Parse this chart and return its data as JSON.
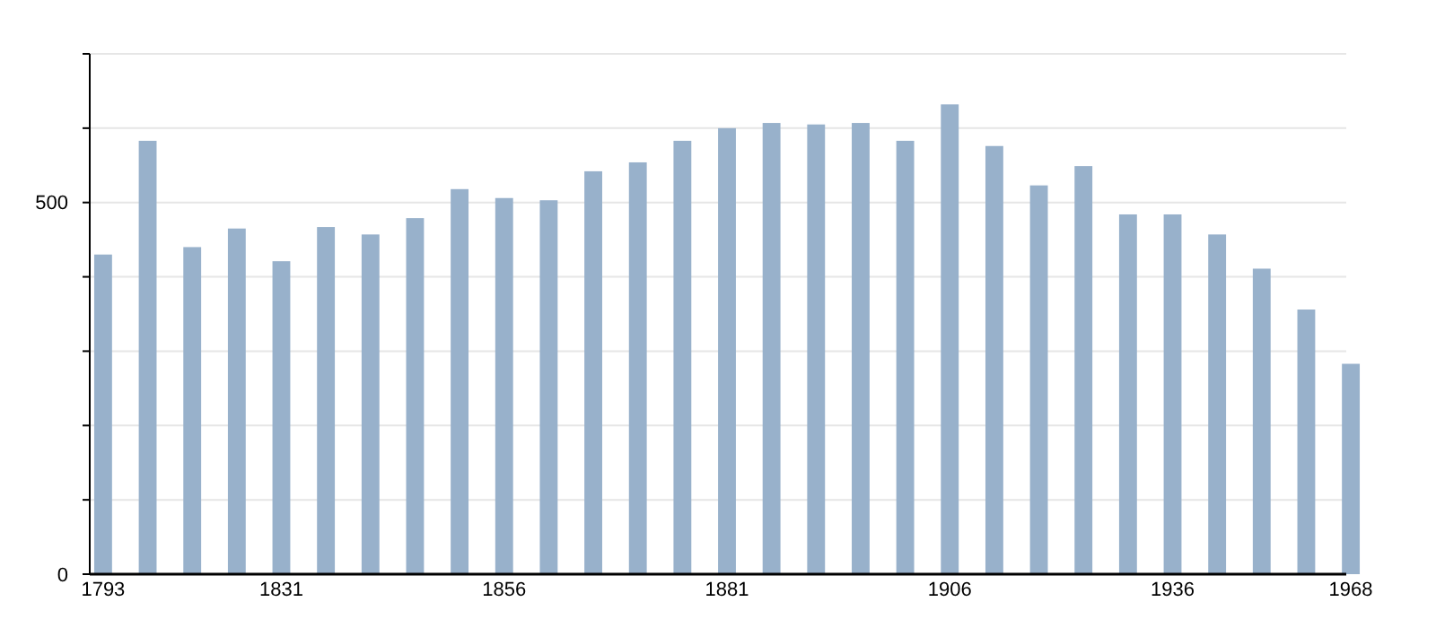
{
  "chart_data": {
    "type": "bar",
    "categories": [
      "1793",
      null,
      null,
      null,
      "1831",
      null,
      null,
      null,
      null,
      "1856",
      null,
      null,
      null,
      null,
      "1881",
      null,
      null,
      null,
      null,
      "1906",
      null,
      null,
      null,
      null,
      "1936",
      null,
      null,
      null,
      "1968"
    ],
    "values": [
      430,
      583,
      440,
      465,
      421,
      467,
      457,
      479,
      518,
      506,
      503,
      542,
      554,
      583,
      600,
      607,
      605,
      607,
      583,
      632,
      576,
      523,
      549,
      484,
      484,
      457,
      411,
      356,
      283
    ],
    "color": "#98b1cb",
    "ylim": [
      0,
      700
    ],
    "yticks": [
      0,
      {
        "value": 100,
        "label": null
      },
      {
        "value": 200,
        "label": null
      },
      {
        "value": 300,
        "label": null
      },
      {
        "value": 400,
        "label": null
      },
      500,
      {
        "value": 600,
        "label": null
      },
      {
        "value": 700,
        "label": null
      }
    ],
    "grid": "y"
  }
}
